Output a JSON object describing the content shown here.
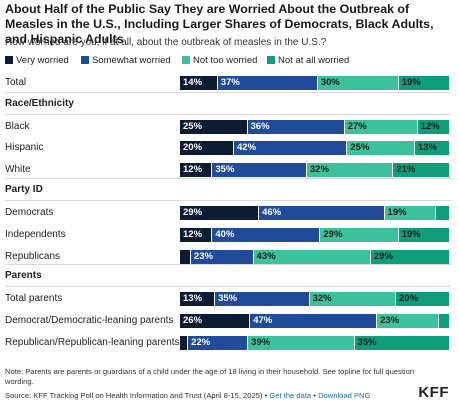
{
  "title": "About Half of the Public Say They are Worried About the Outbreak of Measles in the U.S., Including Larger Shares of Democrats, Black Adults, and Hispanic Adults",
  "subtitle": "How worried are you, if at all, about the outbreak of measles in the U.S.?",
  "colors": {
    "very_worried": "#0d1c33",
    "somewhat_worried": "#1f4b9a",
    "not_too_worried": "#3cc29a",
    "not_at_all_worried": "#0f9e7a"
  },
  "chart_data": {
    "type": "bar",
    "orientation": "horizontal",
    "stacked": true,
    "title": "About Half of the Public Say They are Worried About the Outbreak of Measles in the U.S., Including Larger Shares of Democrats, Black Adults, and Hispanic Adults",
    "subtitle": "How worried are you, if at all, about the outbreak of measles in the U.S.?",
    "legend_position": "top-left",
    "xlim": [
      0,
      100
    ],
    "series": [
      {
        "name": "Very worried",
        "color": "#0d1c33"
      },
      {
        "name": "Somewhat worried",
        "color": "#1f4b9a"
      },
      {
        "name": "Not too worried",
        "color": "#3cc29a"
      },
      {
        "name": "Not at all worried",
        "color": "#0f9e7a"
      }
    ],
    "rows": [
      {
        "group": "",
        "label": "Total",
        "values": [
          14,
          37,
          30,
          19
        ],
        "labels": [
          "14%",
          "37%",
          "30%",
          "19%"
        ]
      },
      {
        "group": "Race/Ethnicity",
        "label": "Black",
        "values": [
          25,
          36,
          27,
          12
        ],
        "labels": [
          "25%",
          "36%",
          "27%",
          "12%"
        ]
      },
      {
        "group": "Race/Ethnicity",
        "label": "Hispanic",
        "values": [
          20,
          42,
          25,
          13
        ],
        "labels": [
          "20%",
          "42%",
          "25%",
          "13%"
        ]
      },
      {
        "group": "Race/Ethnicity",
        "label": "White",
        "values": [
          12,
          35,
          32,
          21
        ],
        "labels": [
          "12%",
          "35%",
          "32%",
          "21%"
        ]
      },
      {
        "group": "Party ID",
        "label": "Democrats",
        "values": [
          29,
          46,
          19,
          5
        ],
        "labels": [
          "29%",
          "46%",
          "19%",
          ""
        ]
      },
      {
        "group": "Party ID",
        "label": "Independents",
        "values": [
          12,
          40,
          29,
          19
        ],
        "labels": [
          "12%",
          "40%",
          "29%",
          "19%"
        ]
      },
      {
        "group": "Party ID",
        "label": "Republicans",
        "values": [
          4,
          23,
          43,
          29
        ],
        "labels": [
          "",
          "23%",
          "43%",
          "29%"
        ]
      },
      {
        "group": "Parents",
        "label": "Total parents",
        "values": [
          13,
          35,
          32,
          20
        ],
        "labels": [
          "13%",
          "35%",
          "32%",
          "20%"
        ]
      },
      {
        "group": "Parents",
        "label": "Democrat/Democratic-leaning parents",
        "values": [
          26,
          47,
          23,
          4
        ],
        "labels": [
          "26%",
          "47%",
          "23%",
          ""
        ]
      },
      {
        "group": "Parents",
        "label": "Republican/Republican-leaning parents",
        "values": [
          3,
          22,
          39,
          35
        ],
        "labels": [
          "",
          "22%",
          "39%",
          "35%"
        ]
      }
    ]
  },
  "note": "Note: Parents are parents or guardians of a child under the age of 18 living in their household. See topline for full question wording.",
  "source": {
    "text": "Source: KFF Tracking Poll on Health Information and Trust (April 8-15, 2025) •",
    "get_data": "Get the data",
    "separator": "•",
    "download": "Download PNG"
  },
  "logo": "KFF"
}
